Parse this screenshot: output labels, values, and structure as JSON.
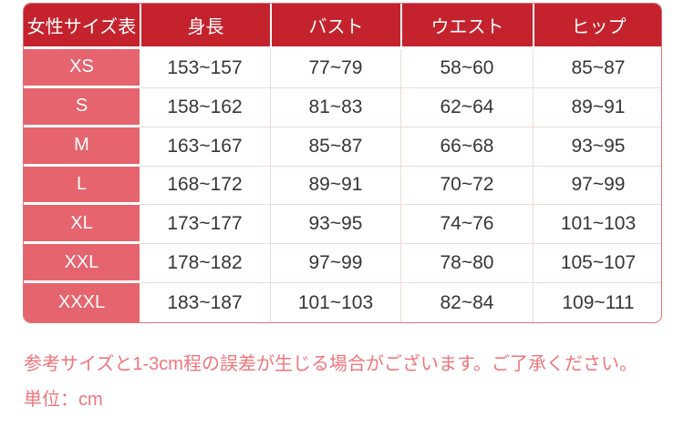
{
  "table": {
    "header": [
      "女性サイズ表",
      "身長",
      "バスト",
      "ウエスト",
      "ヒップ"
    ],
    "rows": [
      {
        "size": "XS",
        "values": [
          "153~157",
          "77~79",
          "58~60",
          "85~87"
        ]
      },
      {
        "size": "S",
        "values": [
          "158~162",
          "81~83",
          "62~64",
          "89~91"
        ]
      },
      {
        "size": "M",
        "values": [
          "163~167",
          "85~87",
          "66~68",
          "93~95"
        ]
      },
      {
        "size": "L",
        "values": [
          "168~172",
          "89~91",
          "70~72",
          "97~99"
        ]
      },
      {
        "size": "XL",
        "values": [
          "173~177",
          "93~95",
          "74~76",
          "101~103"
        ]
      },
      {
        "size": "XXL",
        "values": [
          "178~182",
          "97~99",
          "78~80",
          "105~107"
        ]
      },
      {
        "size": "XXXL",
        "values": [
          "183~187",
          "101~103",
          "82~84",
          "109~111"
        ]
      }
    ]
  },
  "notes": {
    "line1": "参考サイズと1-3cm程の誤差が生じる場合がございます。ご了承ください。",
    "line2": "単位：cm"
  },
  "colors": {
    "header_bg": "#c4232e",
    "label_bg": "#e5646e",
    "grid_line": "#eddbd7",
    "outer_border": "#dd737b",
    "data_text": "#363636",
    "note_text": "#ee767d"
  }
}
